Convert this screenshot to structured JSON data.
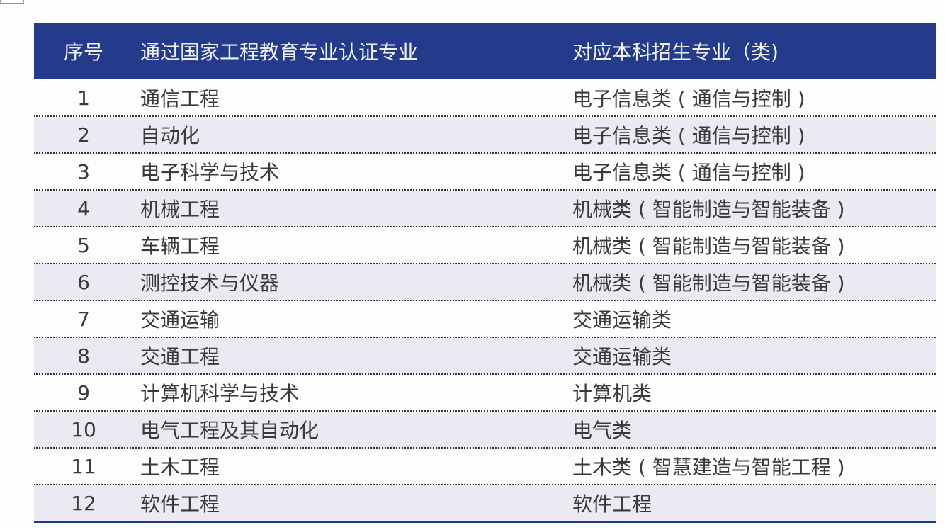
{
  "colors": {
    "header_bg": "#243b8c",
    "alt_row_bg": "#eaeaf3",
    "bottom_rule": "#1d3a8f"
  },
  "header": {
    "col1": "序号",
    "col2": "通过国家工程教育专业认证专业",
    "col3": "对应本科招生专业（类)"
  },
  "rows": [
    {
      "no": "1",
      "major": "通信工程",
      "category": "电子信息类 ( 通信与控制 )"
    },
    {
      "no": "2",
      "major": "自动化",
      "category": "电子信息类 ( 通信与控制 )"
    },
    {
      "no": "3",
      "major": "电子科学与技术",
      "category": "电子信息类 ( 通信与控制 )"
    },
    {
      "no": "4",
      "major": "机械工程",
      "category": "机械类 ( 智能制造与智能装备 )"
    },
    {
      "no": "5",
      "major": "车辆工程",
      "category": "机械类 ( 智能制造与智能装备 )"
    },
    {
      "no": "6",
      "major": "测控技术与仪器",
      "category": "机械类 ( 智能制造与智能装备 )"
    },
    {
      "no": "7",
      "major": "交通运输",
      "category": "交通运输类"
    },
    {
      "no": "8",
      "major": "交通工程",
      "category": "交通运输类"
    },
    {
      "no": "9",
      "major": "计算机科学与技术",
      "category": "计算机类"
    },
    {
      "no": "10",
      "major": "电气工程及其自动化",
      "category": "电气类"
    },
    {
      "no": "11",
      "major": "土木工程",
      "category": "土木类 ( 智慧建造与智能工程 )"
    },
    {
      "no": "12",
      "major": "软件工程",
      "category": "软件工程"
    }
  ]
}
